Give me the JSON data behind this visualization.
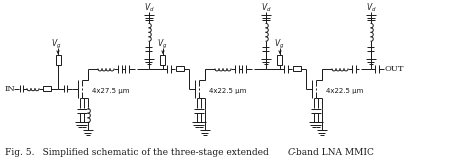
{
  "title": "",
  "caption_prefix": "Fig. 5.",
  "caption_middle": "   Simplified schematic of the three-stage extended ",
  "caption_italic": "C",
  "caption_suffix": "-band LNA MMIC",
  "fig_width": 4.74,
  "fig_height": 1.64,
  "bg_color": "#ffffff",
  "line_color": "#1a1a1a",
  "line_width": 0.7,
  "stage1_label": "4x27.5 μm",
  "stage2_label": "4x22.5 μm",
  "stage3_label": "4x22.5 μm"
}
